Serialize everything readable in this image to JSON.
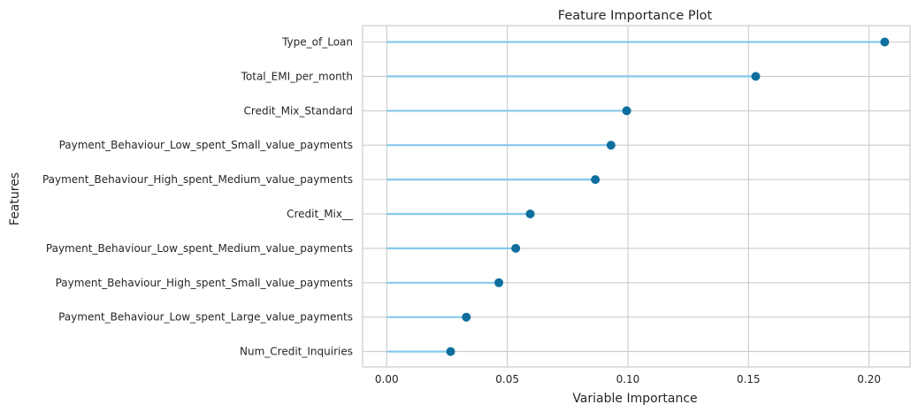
{
  "chart_data": {
    "type": "lollipop",
    "title": "Feature Importance Plot",
    "xlabel": "Variable Importance",
    "ylabel": "Features",
    "xlim": [
      -0.01,
      0.217
    ],
    "xticks": [
      0.0,
      0.05,
      0.1,
      0.15,
      0.2
    ],
    "xtick_labels": [
      "0.00",
      "0.05",
      "0.10",
      "0.15",
      "0.20"
    ],
    "grid": true,
    "categories": [
      "Type_of_Loan",
      "Total_EMI_per_month",
      "Credit_Mix_Standard",
      "Payment_Behaviour_Low_spent_Small_value_payments",
      "Payment_Behaviour_High_spent_Medium_value_payments",
      "Credit_Mix__",
      "Payment_Behaviour_Low_spent_Medium_value_payments",
      "Payment_Behaviour_High_spent_Small_value_payments",
      "Payment_Behaviour_Low_spent_Large_value_payments",
      "Num_Credit_Inquiries"
    ],
    "values": [
      0.2065,
      0.153,
      0.0995,
      0.093,
      0.0865,
      0.0595,
      0.0535,
      0.0465,
      0.033,
      0.0265
    ],
    "colors": {
      "stem": "#86c8ec",
      "marker": "#0e6e9e",
      "grid": "#cccccc",
      "frame": "#cccccc",
      "text": "#262626"
    }
  }
}
